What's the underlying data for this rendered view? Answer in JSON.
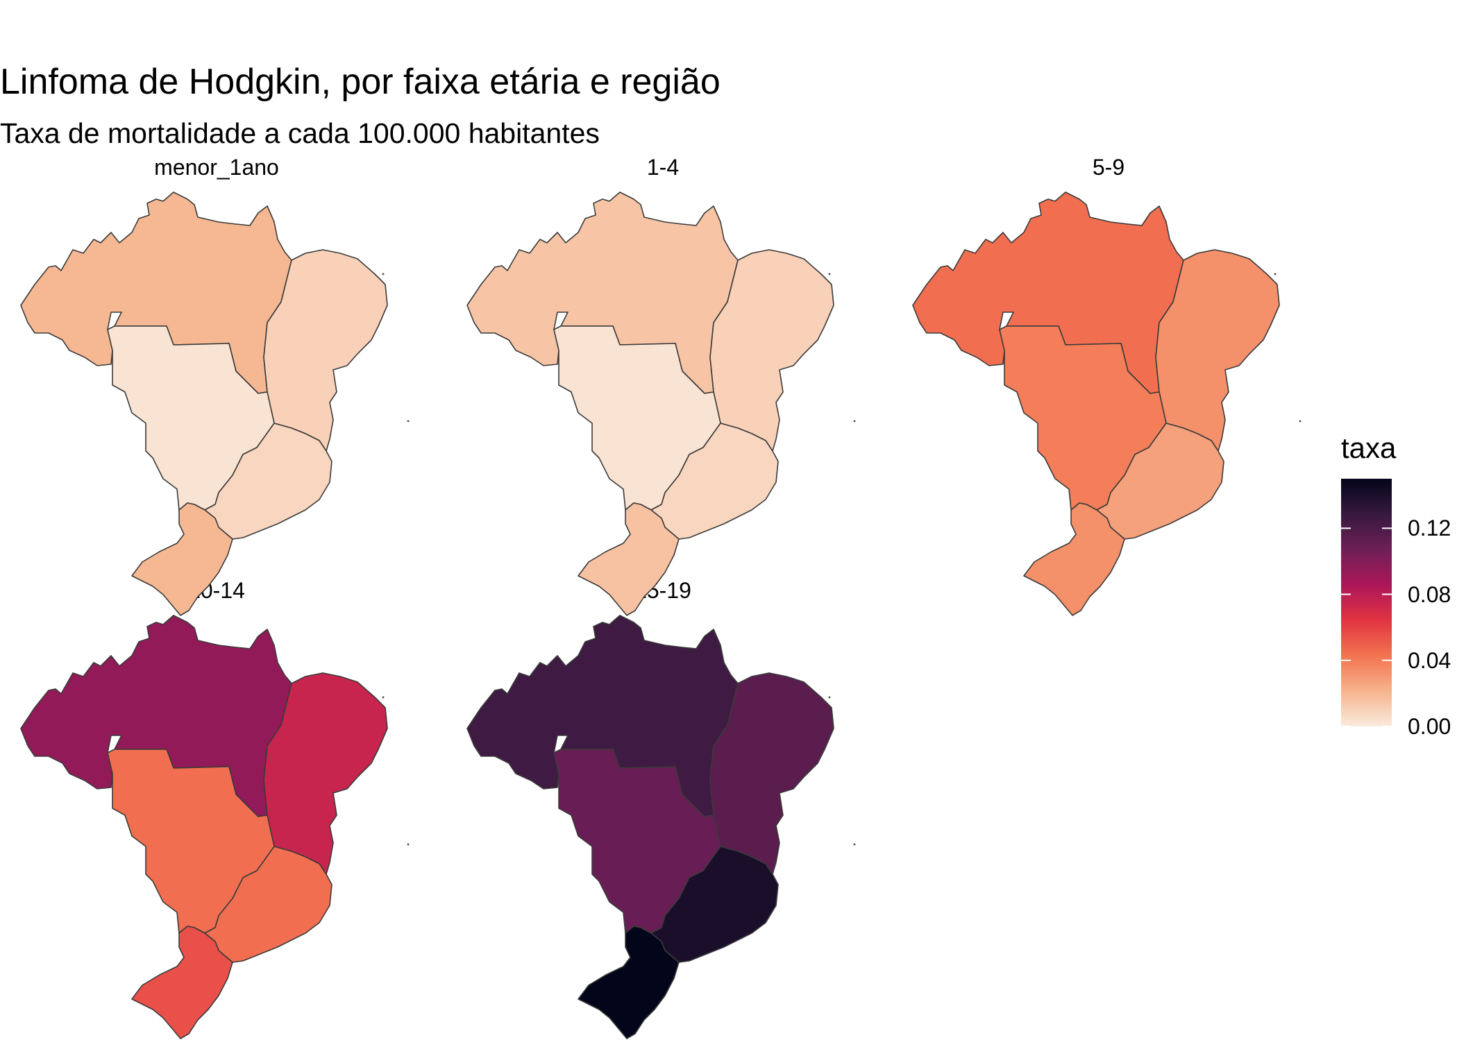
{
  "title": "Linfoma de Hodgkin, por faixa etária e região",
  "subtitle": "Taxa de mortalidade a cada 100.000 habitantes",
  "legend": {
    "title": "taxa",
    "ticks": [
      "0.00",
      "0.04",
      "0.08",
      "0.12"
    ],
    "tick_values": [
      0.0,
      0.04,
      0.08,
      0.12
    ],
    "range": [
      0.0,
      0.15
    ],
    "colors": [
      "#faebdd",
      "#f6b48e",
      "#f37651",
      "#e13342",
      "#ad1759",
      "#701f57",
      "#35193e",
      "#03051a"
    ]
  },
  "map": {
    "country": "Brasil",
    "regions": [
      "Norte",
      "Nordeste",
      "Centro-Oeste",
      "Sudeste",
      "Sul"
    ],
    "panels": [
      {
        "label": "menor_1ano",
        "values": {
          "Norte": 0.02,
          "Nordeste": 0.01,
          "Centro-Oeste": 0.003,
          "Sudeste": 0.008,
          "Sul": 0.02
        }
      },
      {
        "label": "1-4",
        "values": {
          "Norte": 0.015,
          "Nordeste": 0.01,
          "Centro-Oeste": 0.003,
          "Sudeste": 0.008,
          "Sul": 0.016
        }
      },
      {
        "label": "5-9",
        "values": {
          "Norte": 0.045,
          "Nordeste": 0.034,
          "Centro-Oeste": 0.04,
          "Sudeste": 0.028,
          "Sul": 0.034
        }
      },
      {
        "label": "10-14",
        "values": {
          "Norte": 0.095,
          "Nordeste": 0.075,
          "Centro-Oeste": 0.045,
          "Sudeste": 0.045,
          "Sul": 0.055
        }
      },
      {
        "label": "15-19",
        "values": {
          "Norte": 0.125,
          "Nordeste": 0.115,
          "Centro-Oeste": 0.11,
          "Sudeste": 0.14,
          "Sul": 0.155
        }
      }
    ]
  }
}
